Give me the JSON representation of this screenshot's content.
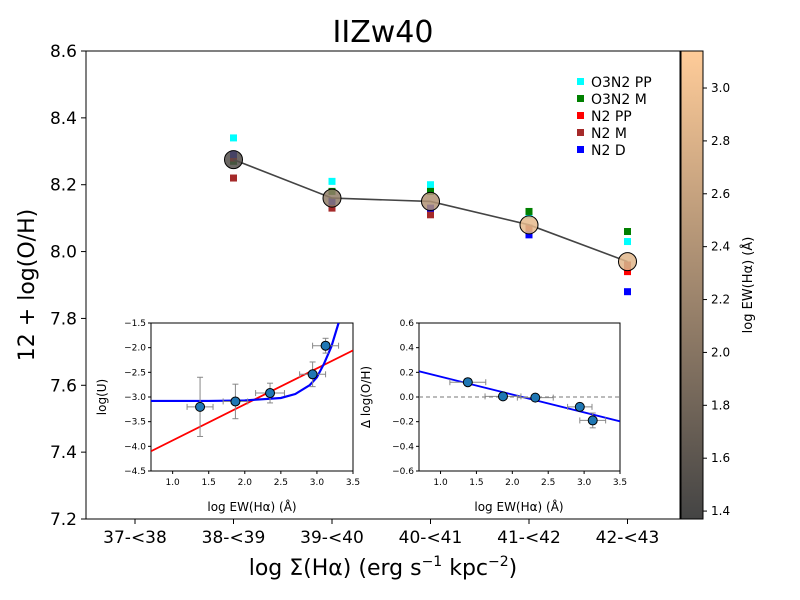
{
  "chart_data": [
    {
      "type": "scatter",
      "title": "IIZw40",
      "xlabel_main": "log Σ(Hα) (erg s",
      "xlabel_sup1": "−1",
      "xlabel_mid": " kpc",
      "xlabel_sup2": "−2",
      "xlabel_end": ")",
      "ylabel": "12 + log(O/H)",
      "categories": [
        "37-<38",
        "38-<39",
        "39-<40",
        "40-<41",
        "41-<42",
        "42-<43"
      ],
      "ylim": [
        7.2,
        8.6
      ],
      "yticks": [
        "7.2",
        "7.4",
        "7.6",
        "7.8",
        "8.0",
        "8.2",
        "8.4",
        "8.6"
      ],
      "legend_position": "top-right",
      "series": [
        {
          "name": "O3N2 PP",
          "color": "#00ffff",
          "values": [
            null,
            8.34,
            8.21,
            8.2,
            8.11,
            8.03
          ]
        },
        {
          "name": "O3N2 M",
          "color": "#008000",
          "values": [
            null,
            8.27,
            8.18,
            8.18,
            8.12,
            8.06
          ]
        },
        {
          "name": "N2 PP",
          "color": "#ff0000",
          "values": [
            null,
            8.28,
            8.14,
            8.12,
            8.07,
            7.94
          ]
        },
        {
          "name": "N2 M",
          "color": "#a52a2a",
          "values": [
            null,
            8.22,
            8.13,
            8.11,
            8.07,
            7.96
          ]
        },
        {
          "name": "N2 D",
          "color": "#0000ff",
          "values": [
            null,
            8.29,
            8.15,
            8.13,
            8.05,
            7.88
          ]
        }
      ],
      "mean": {
        "values": [
          null,
          8.275,
          8.16,
          8.15,
          8.08,
          7.97
        ],
        "colorvalues": [
          null,
          1.5,
          2.1,
          2.4,
          2.9,
          2.85
        ]
      },
      "line_color": "#444444",
      "colorbar": {
        "label": "log EW(Hα) (Å)",
        "range": [
          1.37,
          3.14
        ],
        "ticks": [
          "1.4",
          "1.6",
          "1.8",
          "2.0",
          "2.2",
          "2.4",
          "2.6",
          "2.8",
          "3.0"
        ],
        "color_low": "#444444",
        "color_high": "#ffcc99"
      }
    },
    {
      "type": "scatter",
      "xlabel": "log EW(Hα) (Å)",
      "ylabel": "log(U)",
      "xlim": [
        0.7,
        3.5
      ],
      "ylim": [
        -4.5,
        -1.5
      ],
      "xticks": [
        "1.0",
        "1.5",
        "2.0",
        "2.5",
        "3.0",
        "3.5"
      ],
      "yticks": [
        "−4.5",
        "−4.0",
        "−3.5",
        "−3.0",
        "−2.5",
        "−2.0",
        "−1.5"
      ],
      "points": [
        {
          "x": 1.38,
          "y": -3.2,
          "xerr": 0.18,
          "yerr": 0.6
        },
        {
          "x": 1.87,
          "y": -3.09,
          "xerr": 0.17,
          "yerr": 0.35
        },
        {
          "x": 2.35,
          "y": -2.92,
          "xerr": 0.2,
          "yerr": 0.2
        },
        {
          "x": 2.94,
          "y": -2.54,
          "xerr": 0.18,
          "yerr": 0.25
        },
        {
          "x": 3.12,
          "y": -1.96,
          "xerr": 0.18,
          "yerr": 0.15
        }
      ],
      "point_color": "#1f77b4",
      "linear_fit": {
        "color": "#ff0000",
        "slope": 0.73,
        "intercept": -4.61
      },
      "curve_fit": {
        "color": "#0000ff",
        "x": [
          0.7,
          1.0,
          1.5,
          2.0,
          2.5,
          2.7,
          2.9,
          3.0,
          3.1,
          3.2,
          3.25,
          3.3
        ],
        "y": [
          -3.08,
          -3.08,
          -3.08,
          -3.07,
          -3.02,
          -2.94,
          -2.76,
          -2.6,
          -2.32,
          -1.98,
          -1.74,
          -1.5
        ]
      }
    },
    {
      "type": "scatter",
      "xlabel": "log EW(Hα) (Å)",
      "ylabel": "Δ log(O/H)",
      "xlim": [
        0.7,
        3.5
      ],
      "ylim": [
        -0.6,
        0.6
      ],
      "xticks": [
        "1.0",
        "1.5",
        "2.0",
        "2.5",
        "3.0",
        "3.5"
      ],
      "yticks": [
        "−0.6",
        "−0.4",
        "−0.2",
        "0.0",
        "0.2",
        "0.4",
        "0.6"
      ],
      "points": [
        {
          "x": 1.38,
          "y": 0.12,
          "xerr": 0.25,
          "yerr": 0.03
        },
        {
          "x": 1.87,
          "y": 0.005,
          "xerr": 0.25,
          "yerr": 0.02
        },
        {
          "x": 2.32,
          "y": -0.005,
          "xerr": 0.25,
          "yerr": 0.02
        },
        {
          "x": 2.94,
          "y": -0.08,
          "xerr": 0.17,
          "yerr": 0.03
        },
        {
          "x": 3.12,
          "y": -0.19,
          "xerr": 0.18,
          "yerr": 0.06
        }
      ],
      "point_color": "#1f77b4",
      "zero_line": 0.0,
      "linear_fit": {
        "color": "#0000ff",
        "slope": -0.145,
        "intercept": 0.31
      }
    }
  ]
}
